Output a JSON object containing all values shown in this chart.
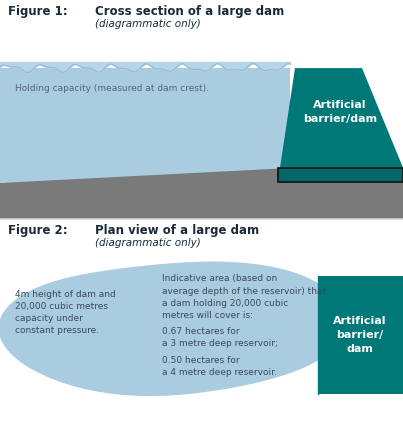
{
  "fig1_title_label": "Figure 1:",
  "fig1_title_main": "Cross section of a large dam",
  "fig1_title_sub": "(diagrammatic only)",
  "fig1_water_label": "Holding capacity (measured at dam crest).",
  "fig1_barrier_label": "Artificial\nbarrier/dam",
  "fig2_title_label": "Figure 2:",
  "fig2_title_main": "Plan view of a large dam",
  "fig2_title_sub": "(diagrammatic only)",
  "fig2_left_text": "4m height of dam and\n20,000 cubic metres\ncapacity under\nconstant pressure.",
  "fig2_right_text1": "Indicative area (based on\naverage depth of the reservoir) that\na dam holding 20,000 cubic\nmetres will cover is:",
  "fig2_right_text2": "0.67 hectares for\na 3 metre deep reservoir;",
  "fig2_right_text3": "0.50 hectares for\na 4 metre deep reservoir.",
  "fig2_barrier_label": "Artificial\nbarrier/\ndam",
  "color_teal": "#007878",
  "color_light_blue": "#aacce0",
  "color_blue_medium": "#b8d4e8",
  "color_gray": "#7a7a7a",
  "color_gray_dark": "#5a5a5a",
  "color_text": "#3a4a5a",
  "color_text_label": "#556677",
  "color_white": "#ffffff",
  "color_title_dark": "#1a2a3a",
  "color_bg": "#ffffff"
}
